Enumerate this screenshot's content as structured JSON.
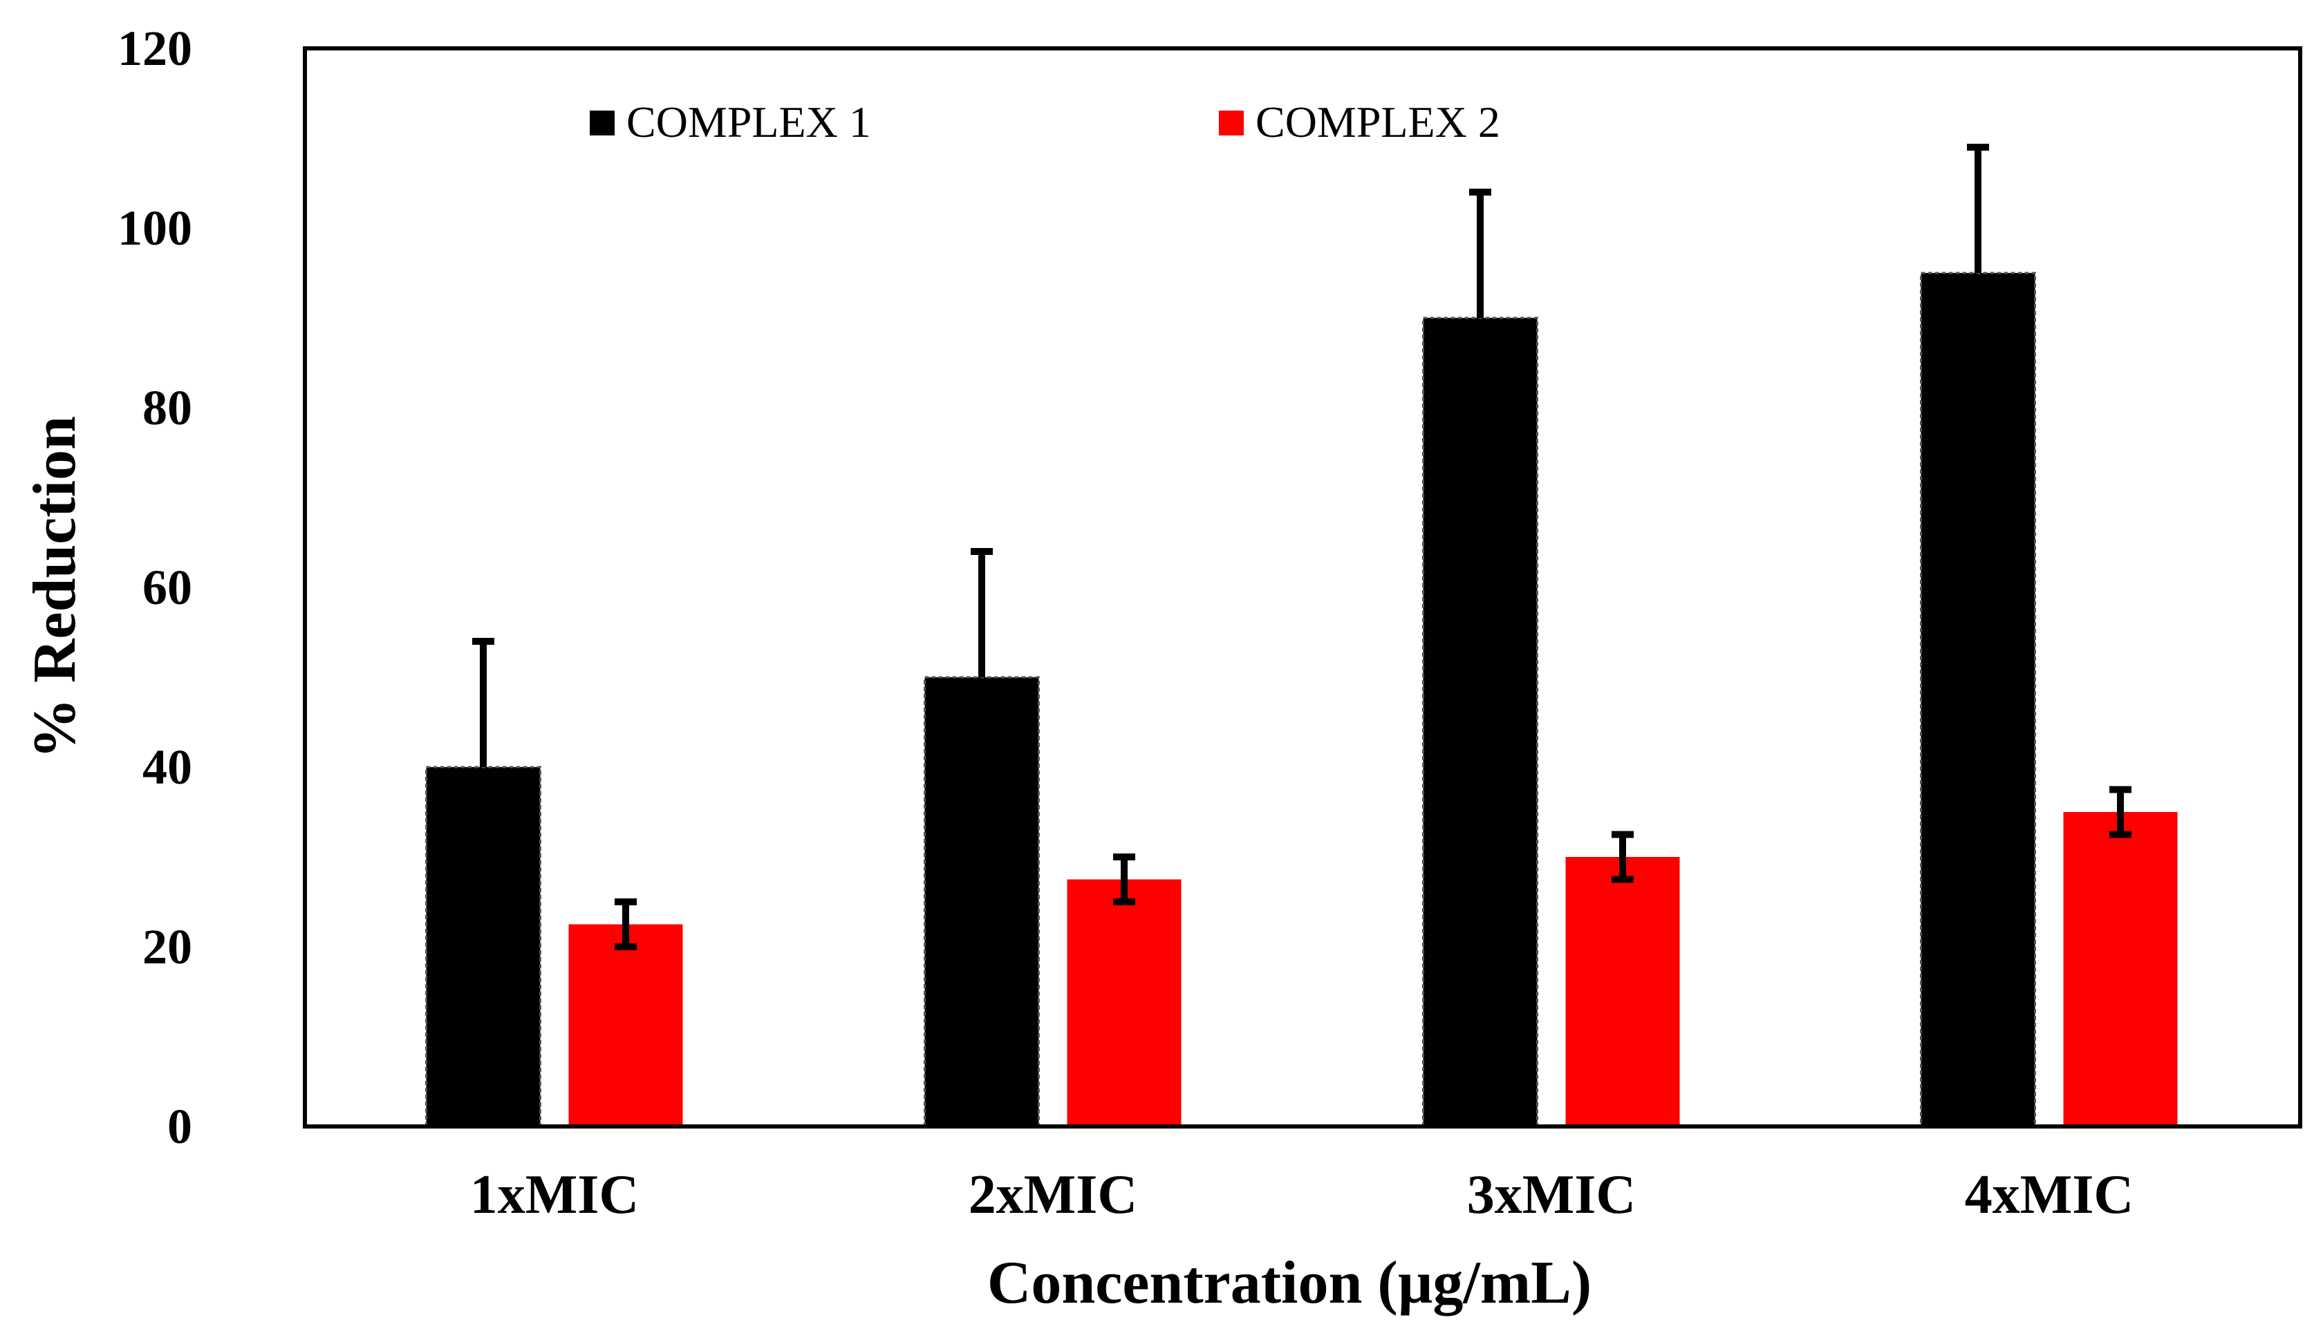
{
  "chart_data": {
    "type": "bar",
    "title": "",
    "xlabel": "Concentration (µg/mL)",
    "ylabel": "% Reduction",
    "ylim": [
      0,
      120
    ],
    "yticks": [
      0,
      20,
      40,
      60,
      80,
      100,
      120
    ],
    "grid": false,
    "legend_position": "top",
    "categories": [
      "1xMIC",
      "2xMIC",
      "3xMIC",
      "4xMIC"
    ],
    "series": [
      {
        "name": "COMPLEX 1",
        "color": "#000000",
        "values": [
          40,
          50,
          90,
          95
        ],
        "errors": [
          14,
          14,
          14,
          14
        ]
      },
      {
        "name": "COMPLEX 2",
        "color": "#ff0000",
        "values": [
          22.5,
          27.5,
          30,
          35
        ],
        "errors": [
          2.5,
          2.5,
          2.5,
          2.5
        ]
      }
    ]
  }
}
